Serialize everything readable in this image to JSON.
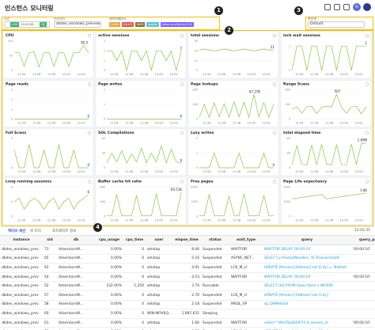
{
  "header": {
    "title": "인스턴스 모니터링",
    "avatar": "M"
  },
  "filters": {
    "time_label": "시간",
    "live": "LIVE",
    "time": "12:02:35",
    "range": "1분",
    "instance_label": "인스턴스",
    "instance": "dbdev_windows_previewi",
    "database_label": "데이터베이스",
    "databases": [
      "CDDB",
      "SQLKIT",
      "WMS",
      "master",
      "AdventureWorks2022"
    ],
    "preset_label": "프리셋",
    "preset": "Default"
  },
  "callouts": [
    "1",
    "2",
    "3",
    "4"
  ],
  "time_axis": [
    "11:54",
    "11:56",
    "11:58",
    "12:00",
    "12:02"
  ],
  "chart_data": [
    {
      "type": "line",
      "title": "CPU",
      "color": "#8cc63f",
      "values": [
        62,
        60,
        15,
        61,
        63,
        12,
        60,
        62,
        14,
        61,
        60,
        13,
        62,
        60,
        85.5,
        60
      ],
      "value_labels": [
        null,
        null,
        null,
        null,
        null,
        null,
        null,
        null,
        null,
        null,
        null,
        null,
        null,
        null,
        "85.5",
        null
      ],
      "ylim": [
        0,
        100
      ],
      "yticks": [
        0,
        50,
        100
      ]
    },
    {
      "type": "line",
      "title": "active sessions",
      "color": "#8cc63f",
      "values": [
        2,
        2,
        1,
        2,
        0,
        2,
        2,
        1,
        2,
        0,
        2,
        2,
        1,
        2,
        0,
        2
      ],
      "value_labels": [
        null,
        null,
        null,
        null,
        null,
        null,
        null,
        null,
        null,
        null,
        null,
        null,
        null,
        null,
        null,
        "2"
      ],
      "ylim": [
        0,
        3
      ],
      "yticks": [
        0,
        1,
        2,
        3
      ]
    },
    {
      "type": "line",
      "title": "total sessions",
      "color": "#8cc63f",
      "values": [
        21,
        22,
        21,
        20,
        21,
        22,
        21,
        20,
        21,
        22,
        21,
        20,
        21,
        22,
        21,
        21
      ],
      "value_labels": [
        null,
        null,
        null,
        null,
        null,
        null,
        null,
        null,
        null,
        null,
        null,
        null,
        null,
        null,
        null,
        "21"
      ],
      "ylim": [
        0,
        30
      ],
      "yticks": [
        0,
        10,
        20,
        30
      ]
    },
    {
      "type": "line",
      "title": "lock wait sessions",
      "color": "#8cc63f",
      "values": [
        0,
        1,
        1,
        0,
        1,
        1,
        0,
        1,
        1,
        0,
        1,
        1,
        0,
        1,
        1,
        1
      ],
      "value_labels": [
        null,
        null,
        null,
        null,
        null,
        null,
        null,
        null,
        null,
        null,
        null,
        null,
        null,
        null,
        null,
        "1"
      ],
      "ylim": [
        0,
        1.2
      ],
      "yticks": [
        0,
        1
      ]
    },
    {
      "type": "line",
      "title": "Page reads",
      "color": "#8cc63f",
      "values": [
        0,
        0,
        0,
        0,
        0,
        0,
        0,
        0,
        0,
        0,
        0,
        0,
        0,
        0,
        0,
        0
      ],
      "value_labels": [
        null,
        null,
        null,
        null,
        null,
        null,
        null,
        null,
        null,
        null,
        null,
        null,
        null,
        null,
        null,
        "0"
      ],
      "ylim": [
        0,
        3
      ],
      "yticks": [
        0,
        1,
        2,
        3
      ]
    },
    {
      "type": "line",
      "title": "Page writes",
      "color": "#8cc63f",
      "values": [
        0,
        0,
        0,
        0,
        0,
        0,
        0,
        0,
        0,
        0,
        0,
        0,
        0,
        0,
        0,
        0
      ],
      "value_labels": [
        null,
        null,
        null,
        null,
        null,
        null,
        null,
        null,
        null,
        null,
        null,
        null,
        null,
        null,
        null,
        "0"
      ],
      "ylim": [
        0,
        2
      ],
      "yticks": [
        0,
        1,
        2
      ]
    },
    {
      "type": "line",
      "title": "Page lookups",
      "color": "#8cc63f",
      "values": [
        5000,
        40000,
        5000,
        45000,
        6000,
        42000,
        5000,
        48000,
        6000,
        46000,
        5000,
        67270,
        6000,
        45000,
        5000,
        40000
      ],
      "value_labels": [
        null,
        null,
        null,
        null,
        null,
        null,
        null,
        null,
        null,
        null,
        null,
        "67.27K",
        null,
        null,
        null,
        null
      ],
      "ylim": [
        0,
        80000
      ],
      "yticks": [
        0,
        {
          "value": 40000,
          "label": "40K"
        },
        {
          "value": 80000,
          "label": "80K"
        }
      ]
    },
    {
      "type": "line",
      "title": "Range Scans",
      "color": "#8cc63f",
      "values": [
        200,
        250,
        120,
        250,
        260,
        110,
        240,
        260,
        250,
        507,
        240,
        120,
        250,
        260,
        110,
        250
      ],
      "value_labels": [
        null,
        null,
        null,
        null,
        null,
        null,
        null,
        null,
        null,
        "507",
        null,
        null,
        null,
        null,
        null,
        null
      ],
      "ylim": [
        0,
        600
      ],
      "yticks": [
        0,
        300,
        600
      ]
    },
    {
      "type": "line",
      "title": "Full Scans",
      "color": "#8cc63f",
      "values": [
        3,
        0,
        0,
        4,
        0,
        0,
        3,
        0,
        0,
        4,
        0,
        0,
        3,
        0,
        0,
        0
      ],
      "value_labels": [
        null,
        null,
        null,
        null,
        null,
        null,
        null,
        null,
        null,
        null,
        null,
        null,
        null,
        null,
        null,
        "0"
      ],
      "ylim": [
        0,
        5
      ],
      "yticks": [
        0,
        5
      ]
    },
    {
      "type": "line",
      "title": "SQL Compilations",
      "color": "#8cc63f",
      "values": [
        10,
        30,
        12,
        35,
        10,
        28,
        12,
        40,
        10,
        30,
        12,
        45,
        10,
        38,
        12,
        9
      ],
      "value_labels": [
        null,
        null,
        null,
        null,
        null,
        null,
        null,
        null,
        null,
        null,
        null,
        null,
        null,
        null,
        null,
        "9"
      ],
      "ylim": [
        0,
        60
      ],
      "yticks": [
        0,
        30,
        60
      ]
    },
    {
      "type": "line",
      "title": "Lazy writes",
      "color": "#8cc63f",
      "values": [
        0,
        0,
        0,
        1,
        0,
        0,
        0,
        0,
        1,
        0,
        0,
        0,
        0,
        1,
        0,
        0
      ],
      "value_labels": [
        null,
        null,
        null,
        null,
        null,
        null,
        null,
        null,
        null,
        null,
        null,
        null,
        null,
        null,
        null,
        "0"
      ],
      "ylim": [
        0,
        2
      ],
      "yticks": [
        0,
        1,
        2
      ]
    },
    {
      "type": "line",
      "title": "total elapsed time",
      "color": "#8cc63f",
      "values": [
        200000,
        1500000,
        220000,
        210000,
        1550000,
        200000,
        1600000,
        230000,
        210000,
        1580000,
        220000,
        200000,
        1620000,
        210000,
        1650000,
        1690000
      ],
      "value_labels": [
        null,
        null,
        null,
        null,
        null,
        null,
        null,
        null,
        null,
        null,
        null,
        null,
        null,
        null,
        null,
        "1.69M"
      ],
      "ylim": [
        0,
        2000000
      ],
      "yticks": [
        0,
        {
          "value": 1000000,
          "label": "1M"
        },
        {
          "value": 2000000,
          "label": "2M"
        }
      ]
    },
    {
      "type": "line",
      "title": "Long running sessions",
      "color": "#8cc63f",
      "values": [
        4,
        5,
        2,
        4,
        5,
        4,
        2,
        4,
        5,
        2,
        4,
        5,
        2,
        4,
        5,
        6
      ],
      "value_labels": [
        null,
        null,
        null,
        null,
        null,
        null,
        null,
        null,
        null,
        null,
        null,
        null,
        null,
        null,
        null,
        "6"
      ],
      "ylim": [
        0,
        8
      ],
      "yticks": [
        0,
        4,
        8
      ]
    },
    {
      "type": "line",
      "title": "Buffer cache hit ratio",
      "color": "#8cc63f",
      "values": [
        2000,
        2000,
        60000,
        2000,
        2000,
        2000,
        58000,
        2000,
        2000,
        2000,
        62000,
        2000,
        2000,
        2000,
        2000,
        65510
      ],
      "value_labels": [
        null,
        null,
        null,
        null,
        null,
        null,
        null,
        null,
        null,
        null,
        null,
        null,
        null,
        null,
        null,
        "65.51K"
      ],
      "ylim": [
        0,
        80000
      ],
      "yticks": [
        0,
        {
          "value": 40000,
          "label": "40K"
        },
        {
          "value": 80000,
          "label": "80K"
        }
      ]
    },
    {
      "type": "line",
      "title": "Free pages",
      "color": "#8cc63f",
      "values": [
        100,
        100,
        3000,
        100,
        100,
        100,
        2800,
        100,
        100,
        3100,
        100,
        100,
        100,
        2900,
        100,
        100
      ],
      "value_labels": [
        null,
        null,
        null,
        null,
        null,
        null,
        null,
        null,
        null,
        null,
        null,
        null,
        null,
        null,
        null,
        null
      ],
      "ylim": [
        0,
        4000
      ],
      "yticks": [
        0,
        2000,
        4000
      ]
    },
    {
      "type": "line",
      "title": "Page Life expectancy",
      "color": "#8cc63f",
      "values": [
        1200,
        1250,
        1300,
        1350,
        1400,
        1450,
        1500,
        1200,
        1250,
        1300,
        1350,
        1400,
        1450,
        1500,
        1550,
        1600
      ],
      "value_labels": [
        null,
        null,
        null,
        null,
        null,
        null,
        null,
        null,
        null,
        null,
        null,
        null,
        null,
        null,
        null,
        "1.6K"
      ],
      "ylim": [
        0,
        2000
      ],
      "yticks": [
        0,
        1000,
        2000
      ]
    }
  ],
  "table": {
    "tabs": [
      "액티브 세션",
      "락 트리",
      "포트레이트 정보"
    ],
    "time": "12:02:35",
    "columns": [
      "instance",
      "sid",
      "db",
      "cpu_usage",
      "cpu_time",
      "user",
      "elapse_time",
      "status",
      "wait_type",
      "query",
      "query_param"
    ],
    "rows": [
      [
        "dbdev_windows_prev",
        "73",
        "AdventureW...",
        "0.00%",
        "0",
        "whatap",
        "8.46",
        "Suspended",
        "WAITFOR",
        "WAITFOR DELAY '00:00:10'",
        "'00:00:10'"
      ],
      [
        "dbdev_windows_prev",
        "65",
        "AdventureW...",
        "0.00%",
        "0",
        "whatap",
        "5.16",
        "Suspended",
        "ASYNC_NET...",
        "SELECT p.ProductNumber, th.TransactionID",
        null
      ],
      [
        "dbdev_windows_prev",
        "62",
        "AdventureW...",
        "0.00%",
        "0",
        "whatap",
        "4.91",
        "Suspended",
        "LCK_M_U",
        "UPDATE [Person].[Address] set [City] = 'Bothell'",
        null
      ],
      [
        "dbdev_windows_prev",
        "54",
        "AdventureW...",
        "0.00%",
        "0",
        "whatap",
        "4.53",
        "Suspended",
        "WAITFOR",
        "WAITFOR DELAY '00:00:10'",
        "'00:00:10'"
      ],
      [
        "dbdev_windows_prev",
        "52",
        "AdventureW...",
        "232.00%",
        "1,250",
        "whatap",
        "3.76",
        "Runnable",
        null,
        "SELECT [Id] FROM Sales.Store s WHERE",
        null
      ],
      [
        "dbdev_windows_prev",
        "57",
        "AdventureW...",
        "0.00%",
        "0",
        "whatap",
        "2.76",
        "Suspended",
        "LCK_M_U",
        "UPDATE [Person].[Address] set [City]",
        null
      ],
      [
        "dbdev_windows_prev",
        "58",
        "AdventureW...",
        "0.00%",
        "0",
        "whatap",
        "2.18",
        "Suspended",
        "MSQL_XP",
        "sp_OAMethod",
        null
      ],
      [
        "dbdev_windows_prev",
        "60",
        "AdventureW...",
        "0.00%",
        "0",
        "WIN-MOV6Q...",
        "1,897,631",
        "Sleeping",
        null,
        null,
        null
      ],
      [
        "dbdev_windows_prev",
        "61",
        "AdventureW...",
        "0.00%",
        "0",
        "whatap",
        "1.66",
        "Suspended",
        "WAITFOR",
        "select * WhaTapSID#74 & session_id",
        "'00:00:10'"
      ],
      [
        "dbdev_windows_prev",
        "62",
        "AdventureW...",
        "0.00%",
        "0",
        "whatap",
        "0.82",
        "Suspended",
        "LCK_M_U",
        "UPDATE [Person].[Address] set [City]",
        null
      ]
    ]
  }
}
